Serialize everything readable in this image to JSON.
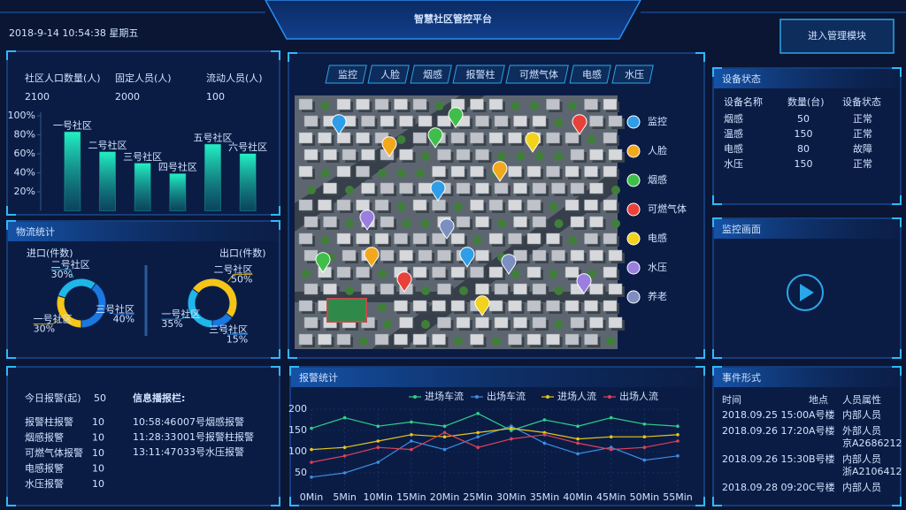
{
  "header": {
    "title": "智慧社区管控平台",
    "datetime": "2018-9-14  10:54:38  星期五",
    "button": "进入管理模块"
  },
  "population": {
    "stats": [
      {
        "label": "社区人口数量(人)",
        "value": 2100
      },
      {
        "label": "固定人员(人)",
        "value": 2000
      },
      {
        "label": "流动人员(人)",
        "value": 100
      }
    ]
  },
  "logistics": {
    "title": "物流统计"
  },
  "tabs": [
    "监控",
    "人脸",
    "烟感",
    "报警柱",
    "可燃气体",
    "电感",
    "水压"
  ],
  "map_legend": [
    {
      "label": "监控",
      "color": "#2f9de8"
    },
    {
      "label": "人脸",
      "color": "#f2a81d"
    },
    {
      "label": "烟感",
      "color": "#3fbf4a"
    },
    {
      "label": "可燃气体",
      "color": "#e8413a"
    },
    {
      "label": "电感",
      "color": "#f2d21d"
    },
    {
      "label": "水压",
      "color": "#9a7ee0"
    },
    {
      "label": "养老",
      "color": "#7c8fc0"
    }
  ],
  "device_status": {
    "title": "设备状态",
    "columns": [
      "设备名称",
      "数量(台)",
      "设备状态"
    ],
    "rows": [
      {
        "name": "烟感",
        "count": 50,
        "status": "正常",
        "status_color": "#3fb4ff"
      },
      {
        "name": "温感",
        "count": 150,
        "status": "正常",
        "status_color": "#3fb4ff"
      },
      {
        "name": "电感",
        "count": 80,
        "status": "故障",
        "status_color": "#ff4d5e"
      },
      {
        "name": "水压",
        "count": 150,
        "status": "正常",
        "status_color": "#3fb4ff"
      }
    ]
  },
  "monitor": {
    "title": "监控画面"
  },
  "alarms": {
    "today_label": "今日报警(起)",
    "today_value": 50,
    "items": [
      {
        "label": "报警柱报警",
        "value": 10
      },
      {
        "label": "烟感报警",
        "value": 10
      },
      {
        "label": "可燃气体报警",
        "value": 10
      },
      {
        "label": "电感报警",
        "value": 10
      },
      {
        "label": "水压报警",
        "value": 10
      }
    ],
    "broadcast_title": "信息播报栏:",
    "broadcast": [
      {
        "time": "10:58:46",
        "text": "007号烟感报警"
      },
      {
        "time": "11:28:33",
        "text": "001号报警柱报警"
      },
      {
        "time": "13:11:47",
        "text": "033号水压报警"
      }
    ]
  },
  "events": {
    "title": "事件形式",
    "columns": [
      "时间",
      "地点",
      "人员属性"
    ],
    "rows": [
      {
        "time": "2018.09.25 15:00",
        "place": "A号楼",
        "attr": [
          "内部人员"
        ],
        "attr_color": "#cfe3ff"
      },
      {
        "time": "2018.09.26 17:20",
        "place": "A号楼",
        "attr": [
          "外部人员",
          "京A2686212"
        ],
        "attr_color": "#f5c93a"
      },
      {
        "time": "2018.09.26 15:30",
        "place": "B号楼",
        "attr": [
          "内部人员",
          "浙A2106412"
        ],
        "attr_color": "#cfe3ff"
      },
      {
        "time": "2018.09.28 09:20",
        "place": "C号楼",
        "attr": [
          "内部人员"
        ],
        "attr_color": "#f5c93a"
      }
    ]
  },
  "chart_data": [
    {
      "type": "bar",
      "categories": [
        "一号社区",
        "二号社区",
        "三号社区",
        "四号社区",
        "五号社区",
        "六号社区"
      ],
      "values": [
        83,
        62,
        50,
        39,
        70,
        60
      ],
      "ylim": [
        0,
        100
      ],
      "yticks": [
        {
          "value": 20,
          "label": "20%"
        },
        {
          "value": 40,
          "label": "40%"
        },
        {
          "value": 60,
          "label": "60%"
        },
        {
          "value": 80,
          "label": "80%"
        },
        {
          "value": 100,
          "label": "100%"
        }
      ],
      "color": "#1fe0b8"
    },
    {
      "type": "donut",
      "title": "进口(件数)",
      "categories": [
        "一号社区",
        "二号社区",
        "三号社区"
      ],
      "values": [
        30,
        30,
        40
      ],
      "value_labels": [
        "30%",
        "30%",
        "40%"
      ],
      "colors": [
        "#f5c518",
        "#1fb6e8",
        "#1a78e0"
      ]
    },
    {
      "type": "donut",
      "title": "出口(件数)",
      "categories": [
        "一号社区",
        "二号社区",
        "三号社区"
      ],
      "values": [
        35,
        50,
        15
      ],
      "value_labels": [
        "35%",
        "50%",
        "15%"
      ],
      "colors": [
        "#1fb6e8",
        "#f5c518",
        "#1a78e0"
      ]
    },
    {
      "type": "line",
      "title": "报警统计",
      "categories": [
        "0Min",
        "5Min",
        "10Min",
        "15Min",
        "20Min",
        "25Min",
        "30Min",
        "35Min",
        "40Min",
        "45Min",
        "50Min",
        "55Min"
      ],
      "ylim": [
        0,
        200
      ],
      "yticks": [
        50,
        100,
        150,
        200
      ],
      "series": [
        {
          "name": "进场车流",
          "color": "#2fd08a",
          "values": [
            155,
            180,
            160,
            170,
            160,
            190,
            150,
            175,
            160,
            180,
            165,
            160
          ]
        },
        {
          "name": "出场车流",
          "color": "#3a8ee6",
          "values": [
            40,
            50,
            75,
            125,
            105,
            135,
            160,
            120,
            95,
            110,
            80,
            90
          ]
        },
        {
          "name": "进场人流",
          "color": "#e6c619",
          "values": [
            105,
            110,
            125,
            140,
            135,
            145,
            155,
            145,
            130,
            135,
            135,
            140
          ]
        },
        {
          "name": "出场人流",
          "color": "#e0405a",
          "values": [
            75,
            90,
            110,
            105,
            145,
            110,
            130,
            140,
            120,
            105,
            110,
            125
          ]
        }
      ]
    }
  ]
}
